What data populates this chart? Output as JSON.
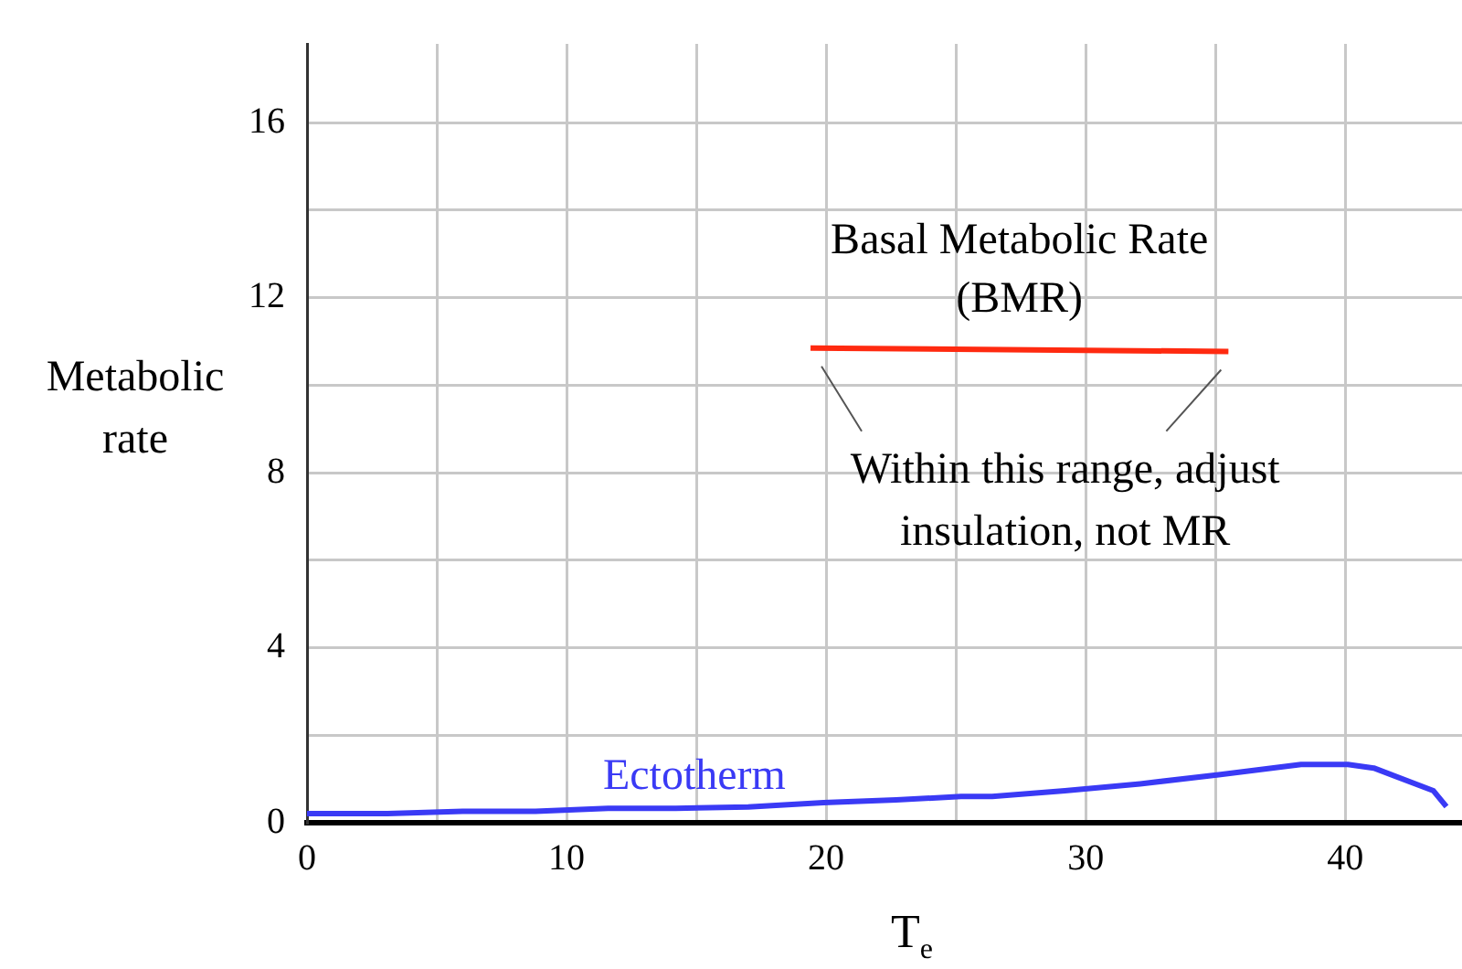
{
  "chart_data": {
    "type": "line",
    "xlabel": "T$_{e}$",
    "ylabel": "Metabolic rate",
    "xlim": [
      0,
      44.5
    ],
    "ylim": [
      0,
      17.8
    ],
    "xticks": [
      0,
      {
        "value": 5,
        "label": null
      },
      10,
      {
        "value": 15,
        "label": null
      },
      20,
      {
        "value": 25,
        "label": null
      },
      30,
      {
        "value": 35,
        "label": null
      },
      40
    ],
    "yticks": [
      0,
      {
        "value": 2,
        "label": null
      },
      4,
      {
        "value": 6,
        "label": null
      },
      8,
      {
        "value": 10,
        "label": null
      },
      12,
      {
        "value": 14,
        "label": null
      },
      16
    ],
    "grid": true,
    "marker": "none",
    "line_style": "solid",
    "series": [
      {
        "name": "Basal Metabolic Rate (BMR)",
        "color": "#ff2a10",
        "x": [
          19.4,
          35.5
        ],
        "values": [
          10.85,
          10.77
        ]
      },
      {
        "name": "Ectotherm",
        "color": "#3a3af5",
        "x": [
          0,
          3.1,
          6,
          8.8,
          11.6,
          14.2,
          17,
          19.9,
          22.7,
          25.2,
          26.4,
          29.2,
          32.1,
          35.2,
          38.3,
          40.1,
          41.1,
          43.4,
          43.9
        ],
        "values": [
          0.21,
          0.21,
          0.26,
          0.26,
          0.33,
          0.33,
          0.36,
          0.46,
          0.52,
          0.6,
          0.6,
          0.73,
          0.89,
          1.1,
          1.33,
          1.33,
          1.25,
          0.73,
          0.37
        ]
      }
    ],
    "annotations": [
      "Within this range, adjust insulation, not MR"
    ]
  }
}
